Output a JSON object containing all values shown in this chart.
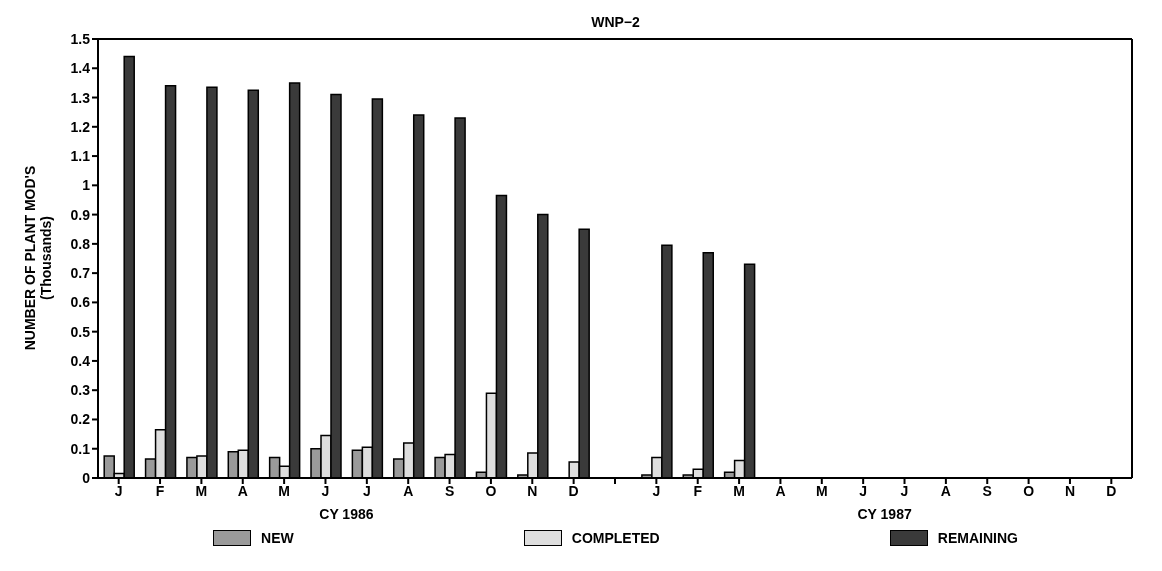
{
  "chart_data": {
    "type": "bar",
    "title": "WNP−2",
    "ylabel": "NUMBER OF PLANT MOD'S\n(Thousands)",
    "categories": [
      "J",
      "F",
      "M",
      "A",
      "M",
      "J",
      "J",
      "A",
      "S",
      "O",
      "N",
      "D",
      null,
      "J",
      "F",
      "M",
      "A",
      "M",
      "J",
      "J",
      "A",
      "S",
      "O",
      "N",
      "D"
    ],
    "series": [
      {
        "name": "NEW",
        "color": "#9a9a9a",
        "values": [
          0.075,
          0.065,
          0.07,
          0.09,
          0.07,
          0.1,
          0.095,
          0.065,
          0.07,
          0.02,
          0.01,
          0,
          null,
          0.01,
          0.01,
          0.02,
          null,
          null,
          null,
          null,
          null,
          null,
          null,
          null,
          null
        ]
      },
      {
        "name": "COMPLETED",
        "color": "#dedede",
        "values": [
          0.015,
          0.165,
          0.075,
          0.095,
          0.04,
          0.145,
          0.105,
          0.12,
          0.08,
          0.29,
          0.085,
          0.055,
          null,
          0.07,
          0.03,
          0.06,
          null,
          null,
          null,
          null,
          null,
          null,
          null,
          null,
          null
        ]
      },
      {
        "name": "REMAINING",
        "color": "#3a3a3a",
        "values": [
          1.44,
          1.34,
          1.335,
          1.325,
          1.35,
          1.31,
          1.295,
          1.24,
          1.23,
          0.965,
          0.9,
          0.85,
          null,
          0.795,
          0.77,
          0.73,
          null,
          null,
          null,
          null,
          null,
          null,
          null,
          null,
          null
        ]
      }
    ],
    "annotations": [
      "CY 1986",
      "CY 1987"
    ],
    "ylim": [
      0,
      1.5
    ],
    "yticks": [
      0,
      0.1,
      0.2,
      0.3,
      0.4,
      0.5,
      0.6,
      0.7,
      0.8,
      0.9,
      1,
      1.1,
      1.2,
      1.3,
      1.4,
      1.5
    ],
    "grid": false,
    "legend": "bottom"
  }
}
